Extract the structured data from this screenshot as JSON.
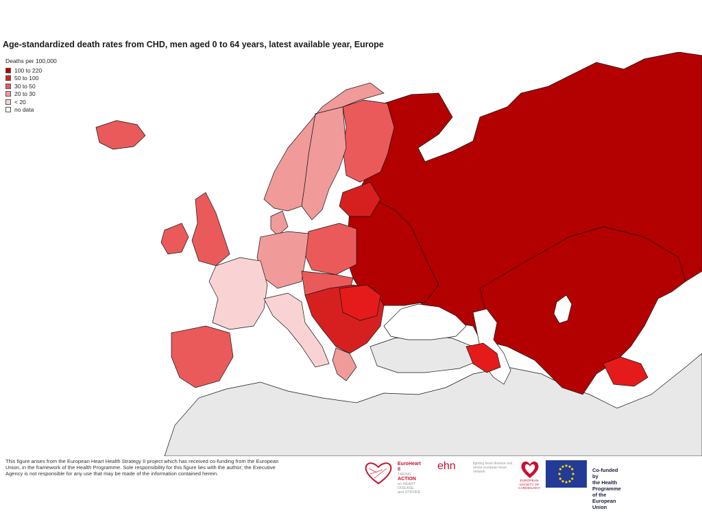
{
  "title": "Age-standardized death rates from CHD, men aged 0 to 64 years, latest available year, Europe",
  "legend": {
    "title": "Deaths per 100,000",
    "items": [
      {
        "label": "100 to 220",
        "color": "#b30000"
      },
      {
        "label": "50 to 100",
        "color": "#d62020"
      },
      {
        "label": "30 to  50",
        "color": "#ea5a5a"
      },
      {
        "label": "20 to  30",
        "color": "#f19a9a"
      },
      {
        "label": "< 20",
        "color": "#f9d3d3"
      },
      {
        "label": "no data",
        "color": "#ffffff"
      }
    ]
  },
  "colors": {
    "sea": "#ffffff",
    "no_data_land": "#e8e8e8",
    "border": "#111111"
  },
  "footer": {
    "disclaimer": "This figure arises from the European Heart Health Strategy II project which has received co-funding from the European Union, in the framework of the Health Programme. Sole responsibility for this figure lies with the author; the Executive Agency is not responsible for any use that may be made of the information contained herein."
  },
  "logos": {
    "euroheart_title": "EuroHeart II",
    "euroheart_sub1": "TAKING",
    "euroheart_sub2": "ACTION",
    "euroheart_sub3": "on HEART DISEASE",
    "euroheart_sub4": "and STROKE",
    "ehn_name": "ehn",
    "ehn_tagline": "fighting heart disease and stroke european heart network",
    "esc_label": "EUROPEAN SOCIETY OF CARDIOLOGY",
    "cofund_line1": "Co-funded by",
    "cofund_line2": "the Health Programme",
    "cofund_line3": "of the European Union"
  }
}
